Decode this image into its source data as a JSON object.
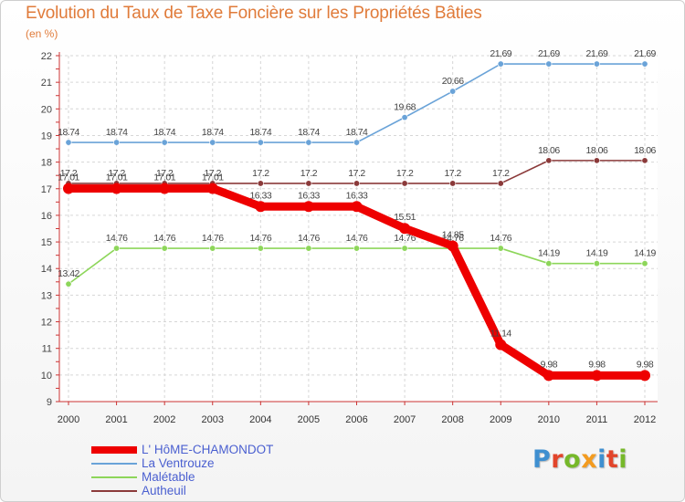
{
  "title": "Evolution du Taux de Taxe Foncière sur les Propriétés Bâties",
  "unit_label": "(en %)",
  "logo": {
    "text": "Proxiti",
    "colors": [
      "#3f8fd0",
      "#e2452b",
      "#76b82a",
      "#f39b1f",
      "#3f8fd0",
      "#e2452b",
      "#76b82a"
    ]
  },
  "chart_data": {
    "type": "line",
    "title": "Evolution du Taux de Taxe Foncière sur les Propriétés Bâties",
    "ylabel": "(en %)",
    "xlabel": "",
    "ylim": [
      9,
      22
    ],
    "yticks": [
      "9",
      "10",
      "11",
      "12",
      "13",
      "14",
      "15",
      "16",
      "17",
      "18",
      "19",
      "20",
      "21",
      "22"
    ],
    "x": [
      "2000",
      "2001",
      "2002",
      "2003",
      "2004",
      "2005",
      "2006",
      "2007",
      "2008",
      "2009",
      "2010",
      "2011",
      "2012"
    ],
    "grid": true,
    "series": [
      {
        "name": "La Ventrouze",
        "color": "#6aa3d8",
        "values": [
          18.74,
          18.74,
          18.74,
          18.74,
          18.74,
          18.74,
          18.74,
          19.68,
          20.66,
          21.69,
          21.69,
          21.69,
          21.69
        ],
        "labels": [
          "18.74",
          "18.74",
          "18.74",
          "18.74",
          "18.74",
          "18.74",
          "18.74",
          "19.68",
          "20.66",
          "21.69",
          "21.69",
          "21.69",
          "21.69"
        ]
      },
      {
        "name": "Autheuil",
        "color": "#8b3a3a",
        "values": [
          17.2,
          17.2,
          17.2,
          17.2,
          17.2,
          17.2,
          17.2,
          17.2,
          17.2,
          17.2,
          18.06,
          18.06,
          18.06
        ],
        "labels": [
          "17.2",
          "17.2",
          "17.2",
          "17.2",
          "17.2",
          "17.2",
          "17.2",
          "17.2",
          "17.2",
          "17.2",
          "18.06",
          "18.06",
          "18.06"
        ]
      },
      {
        "name": "Malétable",
        "color": "#8dd65a",
        "values": [
          13.42,
          14.76,
          14.76,
          14.76,
          14.76,
          14.76,
          14.76,
          14.76,
          14.76,
          14.76,
          14.19,
          14.19,
          14.19
        ],
        "labels": [
          "13.42",
          "14.76",
          "14.76",
          "14.76",
          "14.76",
          "14.76",
          "14.76",
          "14.76",
          "14.76",
          "14.76",
          "14.19",
          "14.19",
          "14.19"
        ]
      },
      {
        "name": "L' HôME-CHAMONDOT",
        "color": "#ee0000",
        "thick": true,
        "values": [
          17.01,
          17.01,
          17.01,
          17.01,
          16.33,
          16.33,
          16.33,
          15.51,
          14.85,
          11.14,
          9.98,
          9.98,
          9.98
        ],
        "labels": [
          "17.01",
          "17.01",
          "17.01",
          "17.01",
          "16.33",
          "16.33",
          "16.33",
          "15.51",
          "14.85",
          "11.14",
          "9.98",
          "9.98",
          "9.98"
        ]
      }
    ]
  },
  "legend": [
    {
      "label": "L' HôME-CHAMONDOT",
      "color": "#ee0000",
      "thick": true
    },
    {
      "label": "La Ventrouze",
      "color": "#6aa3d8",
      "thick": false
    },
    {
      "label": "Malétable",
      "color": "#8dd65a",
      "thick": false
    },
    {
      "label": "Autheuil",
      "color": "#8b3a3a",
      "thick": false
    }
  ]
}
